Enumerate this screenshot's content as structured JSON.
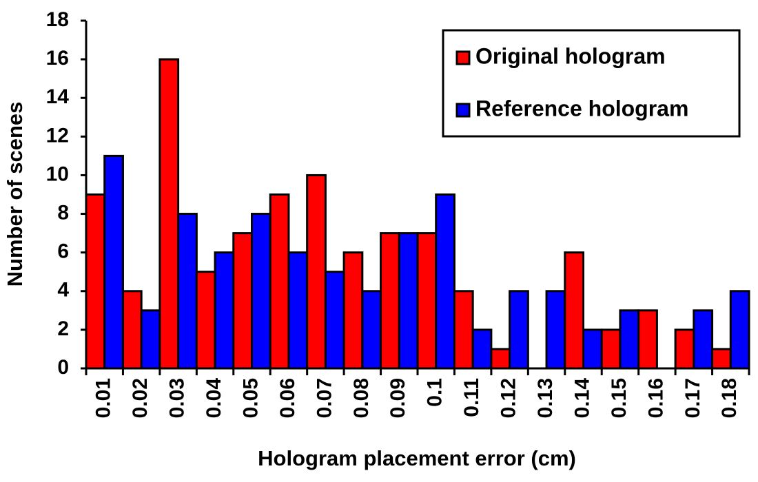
{
  "chart_data": {
    "type": "bar",
    "x_label": "Hologram placement error (cm)",
    "y_label": "Number of scenes",
    "categories": [
      "0.01",
      "0.02",
      "0.03",
      "0.04",
      "0.05",
      "0.06",
      "0.07",
      "0.08",
      "0.09",
      "0.1",
      "0.11",
      "0.12",
      "0.13",
      "0.14",
      "0.15",
      "0.16",
      "0.17",
      "0.18"
    ],
    "series": [
      {
        "name": "Original hologram",
        "color": "#ff0000",
        "values": [
          9,
          4,
          16,
          5,
          7,
          9,
          10,
          6,
          7,
          7,
          4,
          1,
          0,
          6,
          2,
          3,
          2,
          1
        ]
      },
      {
        "name": "Reference hologram",
        "color": "#0000ff",
        "values": [
          11,
          3,
          8,
          6,
          8,
          6,
          5,
          4,
          7,
          9,
          2,
          4,
          4,
          2,
          3,
          0,
          3,
          4
        ]
      }
    ],
    "ylim": [
      0,
      18
    ],
    "yticks": [
      0,
      2,
      4,
      6,
      8,
      10,
      12,
      14,
      16,
      18
    ],
    "grid": false,
    "legend": "upper right"
  }
}
